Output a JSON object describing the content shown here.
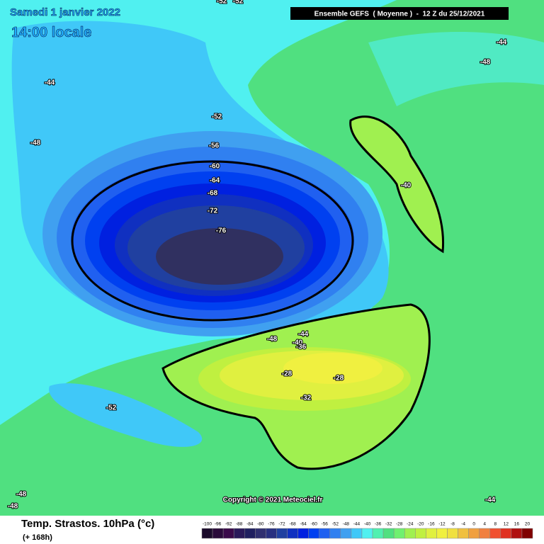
{
  "header": {
    "date": "Samedi 1 janvier 2022",
    "time": "14:00 locale",
    "model": "Ensemble GEFS  ( Moyenne )  -  12 Z du 25/12/2021"
  },
  "contour_labels": [
    "-52",
    "-52",
    "-44",
    "-48",
    "-44",
    "-52",
    "-56",
    "-60",
    "-64",
    "-68",
    "-72",
    "-76",
    "-48",
    "-40",
    "-48",
    "-44",
    "-40",
    "-36",
    "-28",
    "-28",
    "-32",
    "-52",
    "-48",
    "-48",
    "-44"
  ],
  "copyright": "Copyright © 2021 Meteociel.fr",
  "footer": {
    "title": "Temp. Strastos. 10hPa (°c)",
    "lead": "(+ 168h)"
  },
  "legend": {
    "labels": [
      "-100",
      "-96",
      "-92",
      "-88",
      "-84",
      "-80",
      "-76",
      "-72",
      "-68",
      "-64",
      "-60",
      "-56",
      "-52",
      "-48",
      "-44",
      "-40",
      "-36",
      "-32",
      "-28",
      "-24",
      "-20",
      "-16",
      "-12",
      "-8",
      "-4",
      "0",
      "4",
      "8",
      "12",
      "16",
      "20"
    ],
    "colors": [
      "#1a0a2a",
      "#2a0a3a",
      "#3a0a4a",
      "#2a1a5a",
      "#202060",
      "#303070",
      "#283080",
      "#2040a0",
      "#1030c0",
      "#0020e0",
      "#0040f0",
      "#2060f0",
      "#3080f0",
      "#40a0f0",
      "#40c8f8",
      "#50f0f0",
      "#50f0b0",
      "#50e080",
      "#70f070",
      "#a0f050",
      "#c0f040",
      "#e0f040",
      "#f0f040",
      "#f0e040",
      "#f0c040",
      "#f0a040",
      "#f08040",
      "#f05030",
      "#e03020",
      "#b01010",
      "#800000"
    ]
  }
}
